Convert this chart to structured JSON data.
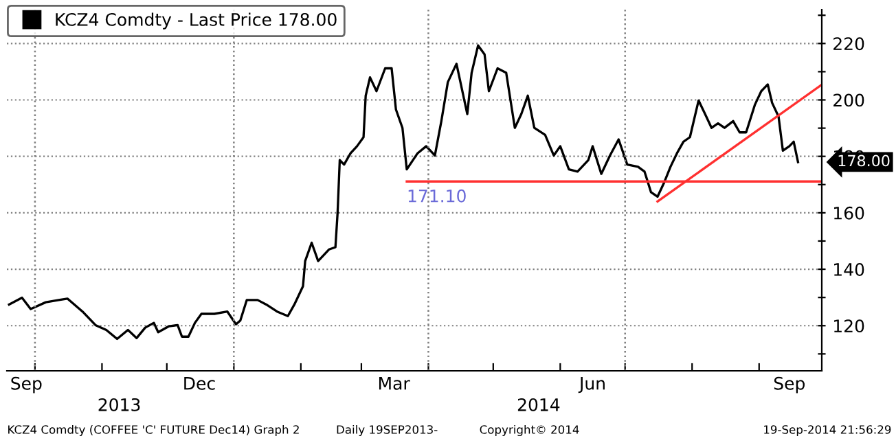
{
  "chart_data": {
    "type": "line",
    "x": [
      "2013-09-19",
      "2013-09-25",
      "2013-09-29",
      "2013-10-06",
      "2013-10-12",
      "2013-10-16",
      "2013-10-23",
      "2013-10-29",
      "2013-11-03",
      "2013-11-08",
      "2013-11-13",
      "2013-11-17",
      "2013-11-21",
      "2013-11-25",
      "2013-11-27",
      "2013-12-02",
      "2013-12-06",
      "2013-12-08",
      "2013-12-11",
      "2013-12-14",
      "2013-12-17",
      "2013-12-23",
      "2013-12-29",
      "2014-01-02",
      "2014-01-04",
      "2014-01-07",
      "2014-01-12",
      "2014-01-16",
      "2014-01-21",
      "2014-01-26",
      "2014-01-29",
      "2014-02-02",
      "2014-02-03",
      "2014-02-06",
      "2014-02-09",
      "2014-02-14",
      "2014-02-17",
      "2014-02-18",
      "2014-02-19",
      "2014-02-21",
      "2014-02-24",
      "2014-02-27",
      "2014-03-02",
      "2014-03-03",
      "2014-03-05",
      "2014-03-08",
      "2014-03-12",
      "2014-03-15",
      "2014-03-17",
      "2014-03-20",
      "2014-03-22",
      "2014-03-27",
      "2014-03-31",
      "2014-04-04",
      "2014-04-07",
      "2014-04-10",
      "2014-04-14",
      "2014-04-19",
      "2014-04-21",
      "2014-04-24",
      "2014-04-27",
      "2014-04-29",
      "2014-05-03",
      "2014-05-07",
      "2014-05-11",
      "2014-05-14",
      "2014-05-17",
      "2014-05-20",
      "2014-05-25",
      "2014-05-29",
      "2014-06-01",
      "2014-06-05",
      "2014-06-09",
      "2014-06-14",
      "2014-06-16",
      "2014-06-20",
      "2014-06-24",
      "2014-06-28",
      "2014-07-02",
      "2014-07-07",
      "2014-07-10",
      "2014-07-13",
      "2014-07-16",
      "2014-07-19",
      "2014-07-22",
      "2014-07-25",
      "2014-07-28",
      "2014-07-31",
      "2014-08-04",
      "2014-08-07",
      "2014-08-10",
      "2014-08-13",
      "2014-08-16",
      "2014-08-20",
      "2014-08-23",
      "2014-08-26",
      "2014-08-30",
      "2014-09-02",
      "2014-09-05",
      "2014-09-07",
      "2014-09-10",
      "2014-09-12",
      "2014-09-15",
      "2014-09-17",
      "2014-09-19"
    ],
    "series": [
      {
        "name": "KCZ4 Comdty - Last Price 178.00",
        "color": "#000000",
        "values": [
          127.5,
          129.9,
          125.9,
          128.3,
          129.1,
          129.6,
          125.0,
          120.2,
          118.5,
          115.3,
          118.5,
          115.6,
          119.3,
          121.0,
          117.7,
          119.8,
          120.2,
          116.1,
          116.1,
          121.0,
          124.2,
          124.2,
          125.0,
          120.5,
          121.8,
          129.1,
          129.1,
          127.5,
          125.0,
          123.4,
          127.5,
          134.0,
          142.9,
          149.4,
          142.9,
          147.0,
          147.8,
          160.0,
          178.7,
          177.1,
          181.1,
          183.6,
          186.8,
          201.5,
          208.0,
          203.1,
          211.2,
          211.2,
          196.6,
          190.1,
          175.4,
          181.1,
          183.6,
          180.3,
          192.5,
          206.3,
          212.8,
          195.0,
          209.6,
          219.3,
          216.1,
          203.1,
          211.2,
          209.6,
          190.1,
          195.0,
          201.5,
          190.1,
          187.6,
          180.3,
          183.6,
          175.4,
          174.6,
          178.7,
          183.6,
          173.8,
          180.3,
          186.0,
          177.1,
          176.3,
          174.6,
          167.3,
          165.7,
          170.6,
          176.3,
          181.1,
          185.2,
          186.8,
          199.8,
          195.0,
          190.1,
          191.7,
          190.1,
          192.5,
          188.5,
          188.5,
          198.2,
          203.1,
          205.5,
          199.0,
          194.1,
          182.0,
          183.6,
          185.2,
          178.0
        ]
      },
      {
        "type": "line",
        "color": "#ff3030",
        "x": [
          "2014-03-22",
          "2014-09-30"
        ],
        "values": [
          171.1,
          171.1
        ]
      },
      {
        "type": "line",
        "color": "#ff3030",
        "x": [
          "2014-07-16",
          "2014-09-30"
        ],
        "values": [
          164,
          205.4
        ]
      }
    ],
    "xlim": [
      "2013-09-18",
      "2014-09-30"
    ],
    "xticks": [
      {
        "value": "2013-09-27",
        "label": "Sep"
      },
      {
        "value": "2013-10-01",
        "label": null
      },
      {
        "value": "2013-11-01",
        "label": null
      },
      {
        "value": "2013-12-01",
        "label": null
      },
      {
        "value": "2013-12-16",
        "label": "Dec"
      },
      {
        "value": "2014-01-01",
        "label": null
      },
      {
        "value": "2014-02-01",
        "label": null
      },
      {
        "value": "2014-03-01",
        "label": null
      },
      {
        "value": "2014-03-16",
        "label": "Mar"
      },
      {
        "value": "2014-04-01",
        "label": null
      },
      {
        "value": "2014-05-01",
        "label": null
      },
      {
        "value": "2014-06-01",
        "label": null
      },
      {
        "value": "2014-06-16",
        "label": "Jun"
      },
      {
        "value": "2014-07-01",
        "label": null
      },
      {
        "value": "2014-08-01",
        "label": null
      },
      {
        "value": "2014-09-01",
        "label": null
      },
      {
        "value": "2014-09-15",
        "label": "Sep"
      }
    ],
    "x2lim": [
      "2013-09-18",
      "2014-09-30"
    ],
    "x2ticks": [
      {
        "value": "2013-11-09",
        "label": "2013"
      },
      {
        "value": "2014-05-22",
        "label": "2014"
      }
    ],
    "ylim": [
      104,
      232
    ],
    "yticks": [
      {
        "value": 110,
        "label": null
      },
      120,
      {
        "value": 130,
        "label": null
      },
      140,
      {
        "value": 150,
        "label": null
      },
      160,
      {
        "value": 170,
        "label": null
      },
      180,
      {
        "value": 190,
        "label": null
      },
      200,
      {
        "value": 210,
        "label": null
      },
      220,
      {
        "value": 230,
        "label": null
      }
    ],
    "grid": "y",
    "ref_lines": [
      {
        "axis": "x",
        "value": "2013-10-01",
        "color": "#808080",
        "line_style": "dotted"
      },
      {
        "axis": "x",
        "value": "2014-01-01",
        "color": "#808080",
        "line_style": "dotted"
      },
      {
        "axis": "x",
        "value": "2014-04-01",
        "color": "#808080",
        "line_style": "dotted"
      },
      {
        "axis": "x",
        "value": "2014-07-01",
        "color": "#808080",
        "line_style": "dotted"
      }
    ],
    "legend": "top left",
    "annotations": [
      {
        "text": "171.10",
        "x": "2014-03-22",
        "y": 171.1
      },
      "178.00",
      "KCZ4 Comdty (COFFEE 'C' FUTURE Dec14) Graph 2",
      "Daily 19SEP2013-",
      "Copyright© 2014",
      "19-Sep-2014 21:56:29"
    ]
  }
}
